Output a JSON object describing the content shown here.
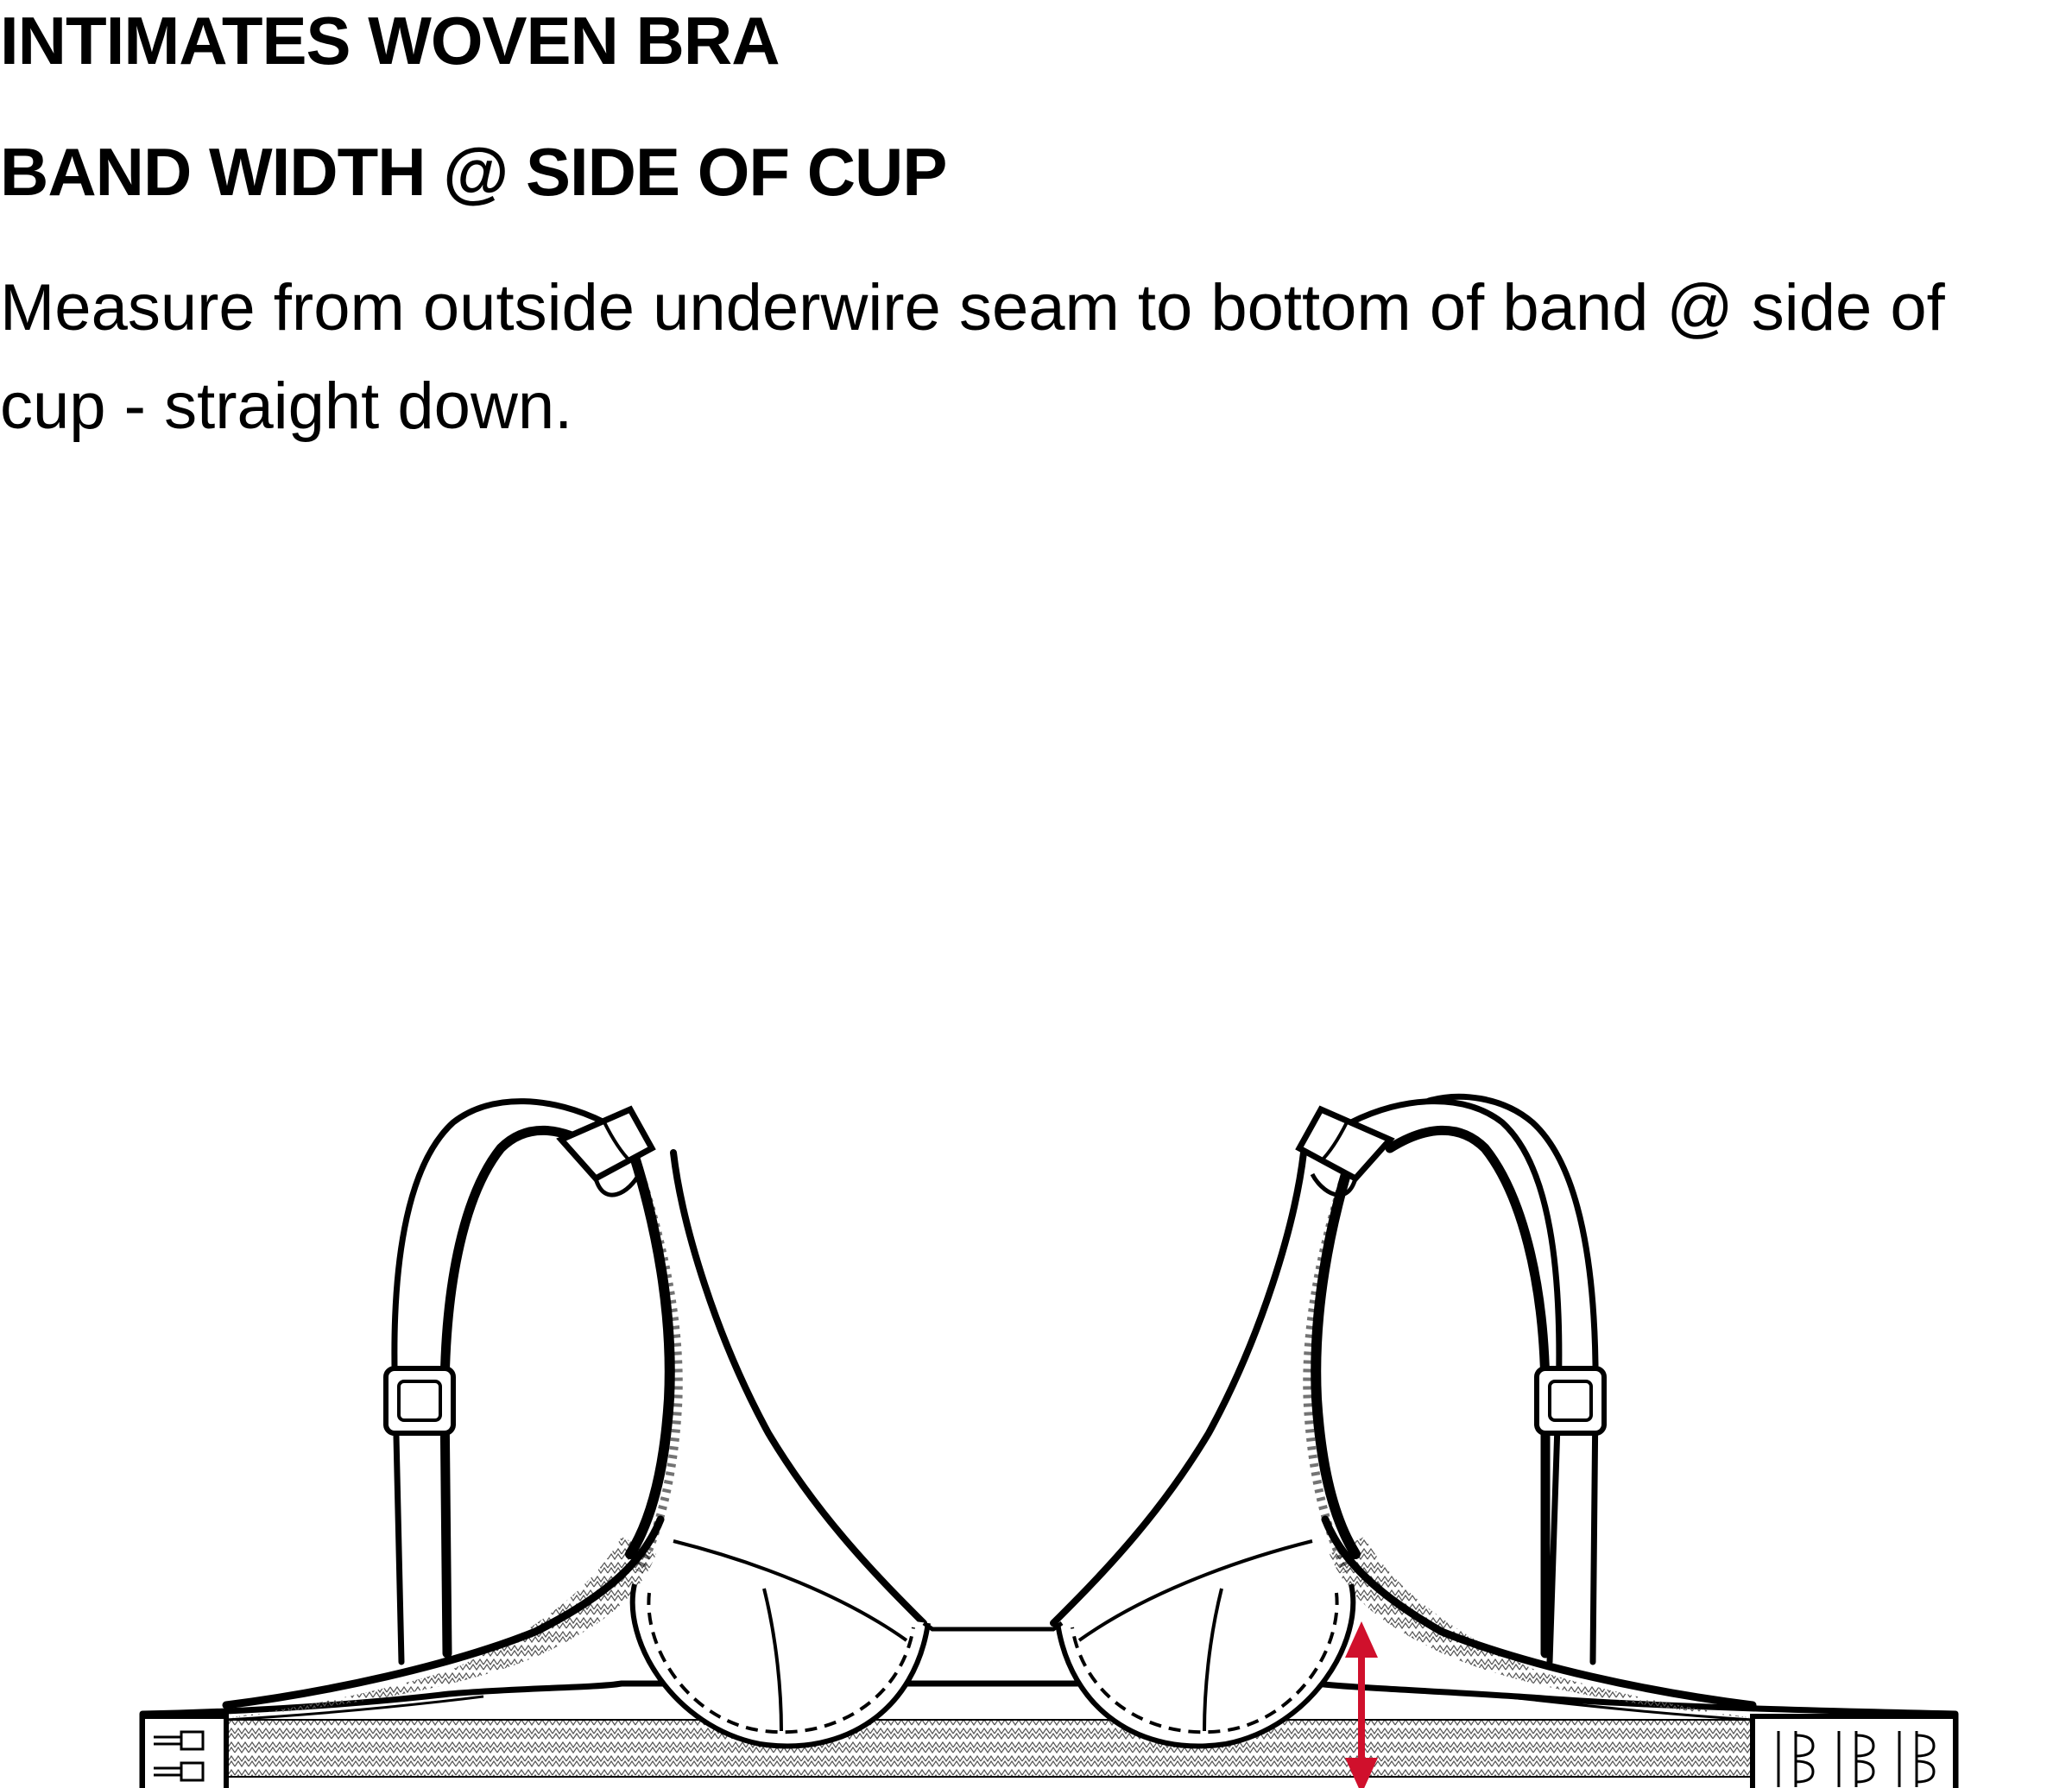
{
  "header": {
    "product_title": "INTIMATES WOVEN BRA",
    "measurement_title": "BAND WIDTH @ SIDE OF CUP"
  },
  "instruction": {
    "text": "Measure from outside underwire seam to bottom of band @ side of cup - straight down."
  },
  "illustration": {
    "subject": "underwire bra flat sketch",
    "arrow_color": "#d0102c",
    "line_color": "#000000",
    "hook_columns": 3,
    "eye_rows": 2
  }
}
